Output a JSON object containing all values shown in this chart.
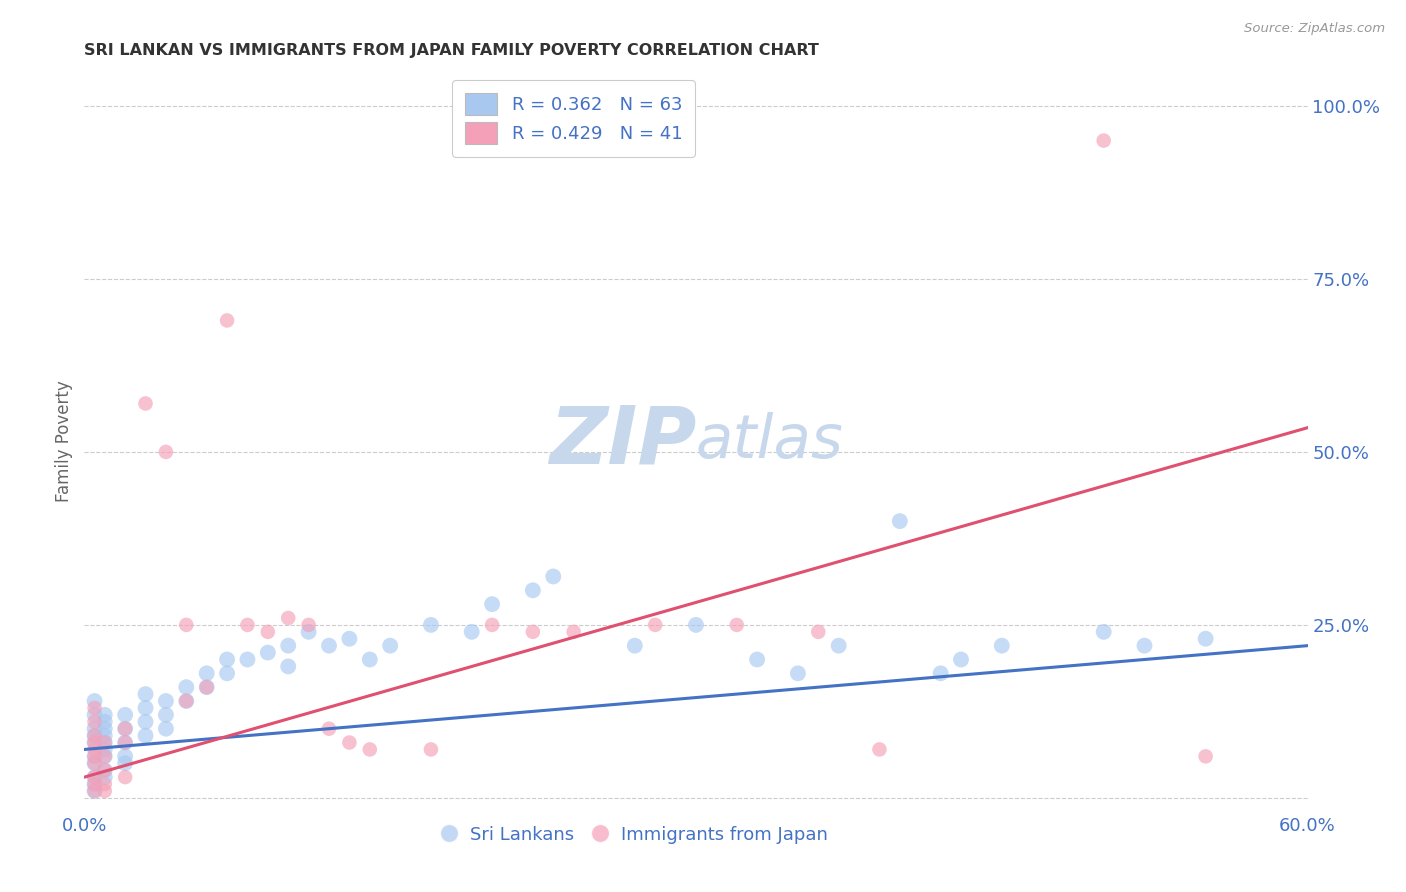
{
  "title": "SRI LANKAN VS IMMIGRANTS FROM JAPAN FAMILY POVERTY CORRELATION CHART",
  "source": "Source: ZipAtlas.com",
  "xlabel_blue": "Sri Lankans",
  "xlabel_pink": "Immigrants from Japan",
  "ylabel": "Family Poverty",
  "xlim": [
    0.0,
    0.6
  ],
  "ylim": [
    -0.02,
    1.05
  ],
  "blue_R": "0.362",
  "blue_N": "63",
  "pink_R": "0.429",
  "pink_N": "41",
  "blue_color": "#A8C8F0",
  "pink_color": "#F4A0B8",
  "blue_line_color": "#4472C4",
  "pink_line_color": "#E05070",
  "title_color": "#333333",
  "axis_label_color": "#4472C4",
  "watermark_color": "#C8D8EC",
  "background_color": "#FFFFFF",
  "blue_scatter_x": [
    0.005,
    0.005,
    0.005,
    0.005,
    0.005,
    0.005,
    0.005,
    0.005,
    0.005,
    0.005,
    0.01,
    0.01,
    0.01,
    0.01,
    0.01,
    0.01,
    0.01,
    0.01,
    0.01,
    0.02,
    0.02,
    0.02,
    0.02,
    0.02,
    0.03,
    0.03,
    0.03,
    0.03,
    0.04,
    0.04,
    0.04,
    0.05,
    0.05,
    0.06,
    0.06,
    0.07,
    0.07,
    0.08,
    0.09,
    0.1,
    0.1,
    0.11,
    0.12,
    0.13,
    0.14,
    0.15,
    0.17,
    0.19,
    0.2,
    0.22,
    0.23,
    0.27,
    0.3,
    0.33,
    0.35,
    0.37,
    0.4,
    0.42,
    0.43,
    0.45,
    0.5,
    0.52,
    0.55
  ],
  "blue_scatter_y": [
    0.03,
    0.05,
    0.06,
    0.08,
    0.09,
    0.1,
    0.12,
    0.14,
    0.02,
    0.01,
    0.08,
    0.1,
    0.12,
    0.06,
    0.07,
    0.09,
    0.11,
    0.04,
    0.03,
    0.1,
    0.12,
    0.08,
    0.06,
    0.05,
    0.11,
    0.13,
    0.15,
    0.09,
    0.14,
    0.12,
    0.1,
    0.16,
    0.14,
    0.18,
    0.16,
    0.2,
    0.18,
    0.2,
    0.21,
    0.22,
    0.19,
    0.24,
    0.22,
    0.23,
    0.2,
    0.22,
    0.25,
    0.24,
    0.28,
    0.3,
    0.32,
    0.22,
    0.25,
    0.2,
    0.18,
    0.22,
    0.4,
    0.18,
    0.2,
    0.22,
    0.24,
    0.22,
    0.23
  ],
  "pink_scatter_x": [
    0.005,
    0.005,
    0.005,
    0.005,
    0.005,
    0.005,
    0.005,
    0.005,
    0.005,
    0.005,
    0.01,
    0.01,
    0.01,
    0.01,
    0.01,
    0.02,
    0.02,
    0.02,
    0.03,
    0.04,
    0.05,
    0.05,
    0.06,
    0.07,
    0.08,
    0.09,
    0.1,
    0.11,
    0.12,
    0.13,
    0.14,
    0.17,
    0.2,
    0.22,
    0.24,
    0.28,
    0.32,
    0.36,
    0.39,
    0.5,
    0.55
  ],
  "pink_scatter_y": [
    0.03,
    0.05,
    0.07,
    0.09,
    0.11,
    0.13,
    0.02,
    0.01,
    0.06,
    0.08,
    0.04,
    0.06,
    0.08,
    0.02,
    0.01,
    0.08,
    0.1,
    0.03,
    0.57,
    0.5,
    0.14,
    0.25,
    0.16,
    0.69,
    0.25,
    0.24,
    0.26,
    0.25,
    0.1,
    0.08,
    0.07,
    0.07,
    0.25,
    0.24,
    0.24,
    0.25,
    0.25,
    0.24,
    0.07,
    0.95,
    0.06
  ],
  "blue_line_x": [
    0.0,
    0.6
  ],
  "blue_line_y": [
    0.07,
    0.22
  ],
  "pink_line_x": [
    0.0,
    0.6
  ],
  "pink_line_y": [
    0.03,
    0.535
  ],
  "grid_color": "#CCCCCC",
  "grid_style": "--",
  "marker_size_blue": 130,
  "marker_size_pink": 110
}
